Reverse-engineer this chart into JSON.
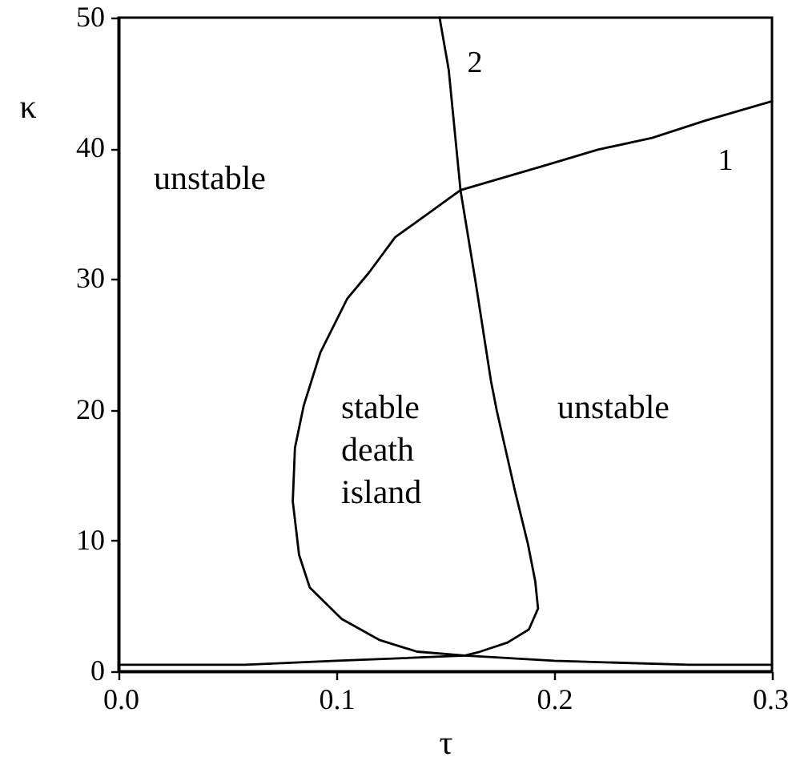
{
  "chart_data": {
    "type": "line",
    "xlabel": "τ",
    "ylabel": "κ",
    "xlim": [
      0,
      0.3
    ],
    "ylim": [
      0,
      50
    ],
    "xticks": [
      {
        "value": 0,
        "label": "0.0"
      },
      0.1,
      0.2,
      0.3
    ],
    "yticks": [
      0,
      10,
      20,
      30,
      40,
      50
    ],
    "series": [
      {
        "name": "1",
        "color": "#000000",
        "x": [
          0.3,
          0.269,
          0.245,
          0.22,
          0.196,
          0.157,
          0.142,
          0.127,
          0.115,
          0.105,
          0.0927,
          0.085,
          0.081,
          0.08,
          0.0829,
          0.0878,
          0.1025,
          0.1197,
          0.137,
          0.159,
          0.2,
          0.262,
          0.3
        ],
        "values": [
          43.6,
          42.1,
          40.8,
          39.9,
          38.7,
          36.8,
          35.0,
          33.2,
          30.5,
          28.5,
          24.4,
          20.3,
          17.1,
          13.0,
          8.9,
          6.4,
          4.0,
          2.4,
          1.5,
          1.2,
          0.8,
          0.5,
          0.5
        ]
      },
      {
        "name": "2",
        "color": "#000000",
        "x": [
          0.1474,
          0.1516,
          0.157,
          0.164,
          0.171,
          0.1737,
          0.182,
          0.188,
          0.1913,
          0.1926,
          0.1884,
          0.1786,
          0.166,
          0.159,
          0.1,
          0.058,
          0
        ],
        "values": [
          50,
          46.0,
          36.8,
          29.7,
          22.2,
          19.9,
          13.8,
          9.7,
          6.9,
          4.8,
          3.2,
          2.2,
          1.5,
          1.2,
          0.8,
          0.5,
          0.5
        ]
      }
    ],
    "annotations": [
      "unstable",
      "stable\ndeath\nisland",
      "unstable"
    ],
    "grid": false,
    "legend": false,
    "marker": "none",
    "line_style": "solid"
  }
}
